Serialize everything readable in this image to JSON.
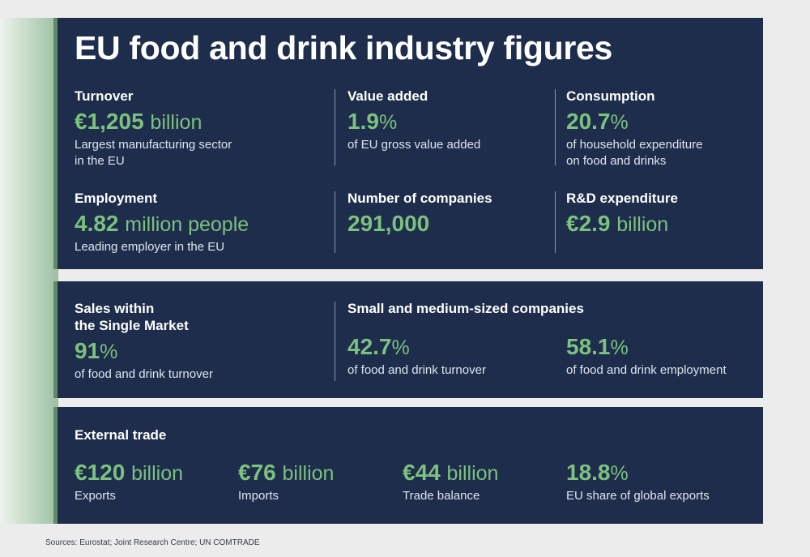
{
  "title": "EU food and drink industry figures",
  "panel1": {
    "turnover": {
      "label": "Turnover",
      "value": "€1,205",
      "unit": "billion",
      "desc1": "Largest manufacturing sector",
      "desc2": "in the EU"
    },
    "value_added": {
      "label": "Value added",
      "value": "1.9",
      "unit": "%",
      "desc1": "of EU gross value added"
    },
    "consumption": {
      "label": "Consumption",
      "value": "20.7",
      "unit": "%",
      "desc1": "of household expenditure",
      "desc2": "on food and drinks"
    },
    "employment": {
      "label": "Employment",
      "value": "4.82",
      "unit": "million people",
      "desc1": "Leading employer in the EU"
    },
    "companies": {
      "label": "Number of companies",
      "value": "291,000"
    },
    "rd": {
      "label": "R&D expenditure",
      "value": "€2.9",
      "unit": "billion"
    }
  },
  "panel2": {
    "sales": {
      "label1": "Sales within",
      "label2": "the Single Market",
      "value": "91",
      "unit": "%",
      "desc1": "of food and drink turnover"
    },
    "sme": {
      "label": "Small and medium-sized companies",
      "turnover": {
        "value": "42.7",
        "unit": "%",
        "desc1": "of food and drink turnover"
      },
      "employment": {
        "value": "58.1",
        "unit": "%",
        "desc1": "of food and drink employment"
      }
    }
  },
  "panel3": {
    "label": "External trade",
    "exports": {
      "value": "€120",
      "unit": "billion",
      "desc1": "Exports"
    },
    "imports": {
      "value": "€76",
      "unit": "billion",
      "desc1": "Imports"
    },
    "balance": {
      "value": "€44",
      "unit": "billion",
      "desc1": "Trade balance"
    },
    "share": {
      "value": "18.8",
      "unit": "%",
      "desc1": "EU share of global exports"
    }
  },
  "sources": "Sources: Eurostat; Joint Research Centre; UN COMTRADE",
  "colors": {
    "panel": "#1d2d4b",
    "accent_green": "#7cc17f",
    "side_strip": "#9dbfa3"
  }
}
